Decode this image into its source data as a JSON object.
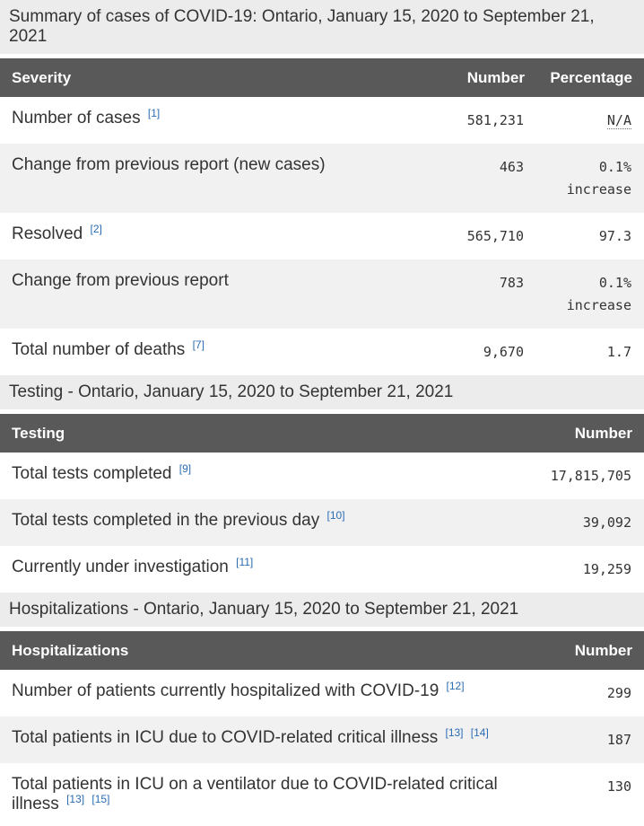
{
  "colors": {
    "header_bg": "#595959",
    "header_fg": "#ffffff",
    "caption_bg": "#ececec",
    "stripe_bg": "#f1f1f2",
    "text": "#333333",
    "link": "#2b6cb3"
  },
  "sections": [
    {
      "id": "severity",
      "caption": "Summary of cases of COVID-19: Ontario, January 15, 2020 to September 21, 2021",
      "columns": [
        {
          "label": "Severity",
          "align": "left",
          "type": "label"
        },
        {
          "label": "Number",
          "align": "right",
          "type": "number"
        },
        {
          "label": "Percentage",
          "align": "right",
          "type": "percentage"
        }
      ],
      "rows": [
        {
          "label": "Number of cases",
          "footnotes": [
            "1"
          ],
          "number": "581,231",
          "percentage": "N/A",
          "percentage_is_abbr": true
        },
        {
          "label": "Change from previous report (new cases)",
          "footnotes": [],
          "number": "463",
          "percentage": "0.1% increase"
        },
        {
          "label": "Resolved",
          "footnotes": [
            "2"
          ],
          "number": "565,710",
          "percentage": "97.3"
        },
        {
          "label": "Change from previous report",
          "footnotes": [],
          "number": "783",
          "percentage": "0.1% increase"
        },
        {
          "label": "Total number of deaths",
          "footnotes": [
            "7"
          ],
          "number": "9,670",
          "percentage": "1.7"
        }
      ]
    },
    {
      "id": "testing",
      "caption": "Testing - Ontario, January 15, 2020 to September 21, 2021",
      "columns": [
        {
          "label": "Testing",
          "align": "left",
          "type": "label"
        },
        {
          "label": "Number",
          "align": "right",
          "type": "number"
        }
      ],
      "rows": [
        {
          "label": "Total tests completed",
          "footnotes": [
            "9"
          ],
          "number": "17,815,705"
        },
        {
          "label": "Total tests completed in the previous day",
          "footnotes": [
            "10"
          ],
          "number": "39,092"
        },
        {
          "label": "Currently under investigation",
          "footnotes": [
            "11"
          ],
          "number": "19,259"
        }
      ]
    },
    {
      "id": "hospitalizations",
      "caption": "Hospitalizations - Ontario, January 15, 2020 to September 21, 2021",
      "columns": [
        {
          "label": "Hospitalizations",
          "align": "left",
          "type": "label"
        },
        {
          "label": "Number",
          "align": "right",
          "type": "number"
        }
      ],
      "rows": [
        {
          "label": "Number of patients currently hospitalized with COVID-19",
          "footnotes": [
            "12"
          ],
          "number": "299"
        },
        {
          "label": "Total patients in ICU due to COVID-related critical illness",
          "footnotes": [
            "13",
            "14"
          ],
          "number": "187"
        },
        {
          "label": "Total patients in ICU on a ventilator due to COVID-related critical illness",
          "footnotes": [
            "13",
            "15"
          ],
          "number": "130"
        }
      ]
    }
  ]
}
